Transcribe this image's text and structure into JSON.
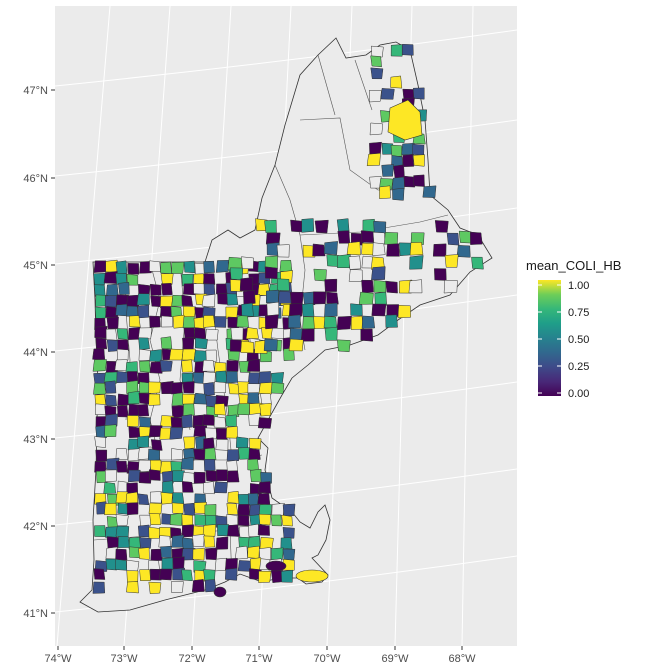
{
  "axes": {
    "x_ticks": [
      "74°W",
      "73°W",
      "72°W",
      "71°W",
      "70°W",
      "69°W",
      "68°W"
    ],
    "y_ticks": [
      "47°N",
      "46°N",
      "45°N",
      "44°N",
      "43°N",
      "42°N",
      "41°N"
    ]
  },
  "legend": {
    "title": "mean_COLI_HB",
    "labels": [
      "1.00",
      "0.75",
      "0.50",
      "0.25",
      "0.00"
    ],
    "colormap": "viridis",
    "range": [
      0,
      1
    ]
  },
  "colors": {
    "panel_background": "#ebebeb",
    "gridline": "#ffffff",
    "boundary": "#333333",
    "viridis_low": "#440154",
    "viridis_mid": "#21908c",
    "viridis_high": "#fde725"
  },
  "chart_data": {
    "type": "choropleth",
    "region": "New England (CT, RI, MA, VT, NH, ME)",
    "variable": "mean_COLI_HB",
    "lon_range": [
      "74°W",
      "68°W"
    ],
    "lat_range": [
      "41°N",
      "47°N"
    ]
  }
}
